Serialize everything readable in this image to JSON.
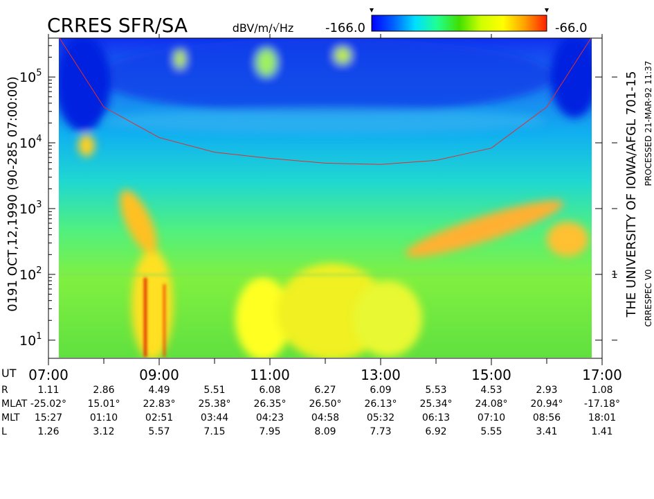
{
  "chart_data": {
    "type": "spectrogram",
    "title": "CRRES SFR/SA",
    "colorbar": {
      "label": "dBV/m/√Hz",
      "clim": [
        {
          "value": -166.0,
          "label": "-166.0"
        },
        {
          "value": -66.0,
          "label": "-66.0"
        }
      ],
      "colormap": [
        "#0000ff",
        "#0060ff",
        "#00e0ff",
        "#20ff90",
        "#40e000",
        "#d0ff00",
        "#ffff00",
        "#ffa000",
        "#ff2000"
      ]
    },
    "left_text": "0191  OCT,12,1990  (90-285 07:00:00)",
    "right_text": "THE UNIVERSITY OF IOWA/AFGL 701-15",
    "processed_text": "PROCESSED 21-MAR-92  11:37",
    "version_text": "CRRESPEC V0",
    "log_y": true,
    "xlim": [
      7,
      17
    ],
    "xticks": [
      {
        "value": 7,
        "label": "07:00"
      },
      {
        "value": 9,
        "label": "09:00"
      },
      {
        "value": 11,
        "label": "11:00"
      },
      {
        "value": 13,
        "label": "13:00"
      },
      {
        "value": 15,
        "label": "15:00"
      },
      {
        "value": 17,
        "label": "17:00"
      }
    ],
    "xminor": [
      8,
      10,
      12,
      14,
      16
    ],
    "ylim": [
      5.3,
      390000
    ],
    "yticks": [
      {
        "value": 10,
        "label": "10",
        "power": "1"
      },
      {
        "value": 100,
        "label": "10",
        "power": "2"
      },
      {
        "value": 1000,
        "label": "10",
        "power": "3"
      },
      {
        "value": 10000,
        "label": "10",
        "power": "4"
      },
      {
        "value": 100000,
        "label": "10",
        "power": "5"
      }
    ],
    "y2lim": [
      0.053,
      3900
    ],
    "y2ticks": [
      0.1,
      1,
      10,
      100,
      1000
    ],
    "y2labels": [
      {
        "value": 1,
        "label": "1"
      }
    ],
    "curve": {
      "color": "#e03030",
      "x": [
        7.2,
        8,
        9,
        10,
        11,
        12,
        13,
        14,
        15,
        16,
        16.8
      ],
      "values": [
        390000,
        35000,
        12000,
        7200,
        5800,
        4900,
        4700,
        5400,
        8300,
        35000,
        390000
      ]
    },
    "ephemeris": {
      "labels": [
        "UT",
        "R",
        "MLAT",
        "MLT",
        "L"
      ],
      "rows": [
        [
          "1.11",
          "2.86",
          "4.49",
          "5.51",
          "6.08",
          "6.27",
          "6.09",
          "5.53",
          "4.53",
          "2.93",
          "1.08"
        ],
        [
          "-25.02°",
          "15.01°",
          "22.83°",
          "25.38°",
          "26.35°",
          "26.50°",
          "26.13°",
          "25.34°",
          "24.08°",
          "20.94°",
          "-17.18°"
        ],
        [
          "15:27",
          "01:10",
          "02:51",
          "03:44",
          "04:23",
          "04:58",
          "05:32",
          "06:13",
          "07:10",
          "08:56",
          "18:01"
        ],
        [
          "1.26",
          "3.12",
          "5.57",
          "7.15",
          "7.95",
          "8.09",
          "7.73",
          "6.92",
          "5.55",
          "3.41",
          "1.41"
        ]
      ]
    }
  }
}
